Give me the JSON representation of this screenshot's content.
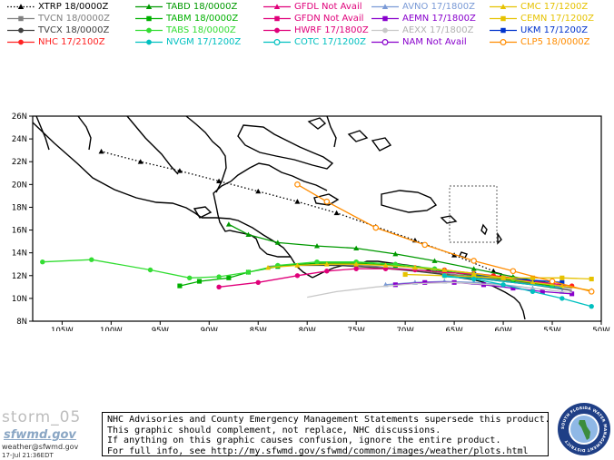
{
  "legend": [
    {
      "label": "XTRP 18/0000Z",
      "color": "#000000",
      "marker": "triangle",
      "dash": "dot"
    },
    {
      "label": "TABD 18/0000Z",
      "color": "#009900",
      "marker": "triangle",
      "dash": "solid"
    },
    {
      "label": "GFDL Not Avail",
      "color": "#e0007a",
      "marker": "triangle",
      "dash": "solid"
    },
    {
      "label": "AVNO 17/1800Z",
      "color": "#7a9ad6",
      "marker": "triangle",
      "dash": "solid"
    },
    {
      "label": "CMC 17/1200Z",
      "color": "#e6c200",
      "marker": "triangle",
      "dash": "solid"
    },
    {
      "label": "TVCN 18/0000Z",
      "color": "#808080",
      "marker": "square",
      "dash": "solid"
    },
    {
      "label": "TABM 18/0000Z",
      "color": "#00b000",
      "marker": "square",
      "dash": "solid"
    },
    {
      "label": "GFDN Not Avail",
      "color": "#e0007a",
      "marker": "square",
      "dash": "solid"
    },
    {
      "label": "AEMN 17/1800Z",
      "color": "#8800cc",
      "marker": "square",
      "dash": "solid"
    },
    {
      "label": "CEMN 17/1200Z",
      "color": "#e6c200",
      "marker": "square",
      "dash": "solid"
    },
    {
      "label": "TVCX 18/0000Z",
      "color": "#404040",
      "marker": "circle",
      "dash": "solid"
    },
    {
      "label": "TABS 18/0000Z",
      "color": "#33dd33",
      "marker": "circle",
      "dash": "solid"
    },
    {
      "label": "HWRF 17/1800Z",
      "color": "#e0007a",
      "marker": "circle",
      "dash": "solid"
    },
    {
      "label": "AEXX 17/1800Z",
      "color": "#c8c8c8",
      "marker": "circle",
      "dash": "solid"
    },
    {
      "label": "UKM 17/1200Z",
      "color": "#0033cc",
      "marker": "square",
      "dash": "solid"
    },
    {
      "label": "NHC 17/2100Z",
      "color": "#ff2222",
      "marker": "circle",
      "dash": "solid"
    },
    {
      "label": "NVGM 17/1200Z",
      "color": "#00c0c0",
      "marker": "circle",
      "dash": "solid"
    },
    {
      "label": "COTC 17/1200Z",
      "color": "#00c0c0",
      "marker": "ring",
      "dash": "solid"
    },
    {
      "label": "NAM Not Avail",
      "color": "#8800cc",
      "marker": "ring",
      "dash": "solid"
    },
    {
      "label": "CLP5 18/0000Z",
      "color": "#ff8c00",
      "marker": "ring",
      "dash": "solid"
    }
  ],
  "chart_data": {
    "type": "line",
    "xlabel": "",
    "ylabel": "",
    "xlim": [
      -108,
      -50
    ],
    "ylim": [
      8,
      26
    ],
    "x_ticks": [
      -105,
      -100,
      -95,
      -90,
      -85,
      -80,
      -75,
      -70,
      -65,
      -60,
      -55,
      -50
    ],
    "x_tick_labels": [
      "105W",
      "100W",
      "95W",
      "90W",
      "85W",
      "80W",
      "75W",
      "70W",
      "65W",
      "60W",
      "55W",
      "50W"
    ],
    "y_ticks": [
      8,
      10,
      12,
      14,
      16,
      18,
      20,
      22,
      24,
      26
    ],
    "y_tick_labels": [
      "8N",
      "10N",
      "12N",
      "14N",
      "16N",
      "18N",
      "20N",
      "22N",
      "24N",
      "26N"
    ],
    "grid": false,
    "series": [
      {
        "name": "XTRP 18/0000Z",
        "color": "#000000",
        "dash": "dot",
        "marker": "triangle",
        "x": [
          -61,
          -65,
          -69,
          -73,
          -77,
          -81,
          -85,
          -89,
          -93,
          -97,
          -101
        ],
        "y": [
          12.4,
          13.8,
          15.1,
          16.3,
          17.5,
          18.5,
          19.4,
          20.3,
          21.2,
          22,
          22.9
        ]
      },
      {
        "name": "TVCN 18/0000Z",
        "color": "#808080",
        "dash": "solid",
        "marker": "none",
        "x": [
          -53,
          -57,
          -61,
          -65,
          -69,
          -73,
          -77,
          -81,
          -84
        ],
        "y": [
          10.9,
          11.3,
          11.7,
          12.1,
          12.5,
          12.8,
          13,
          13,
          12.8
        ]
      },
      {
        "name": "TVCX 18/0000Z",
        "color": "#404040",
        "dash": "solid",
        "marker": "none",
        "x": [
          -53,
          -57,
          -61,
          -65,
          -69,
          -73,
          -77,
          -81
        ],
        "y": [
          10.7,
          11.2,
          11.6,
          12,
          12.4,
          12.7,
          12.9,
          12.9
        ]
      },
      {
        "name": "NHC 17/2100Z",
        "color": "#ff2222",
        "dash": "solid",
        "marker": "circle",
        "x": [
          -53,
          -55,
          -57,
          -59,
          -61,
          -63,
          -66,
          -69
        ],
        "y": [
          11.1,
          11.3,
          11.5,
          11.8,
          12,
          12.2,
          12.5,
          12.7
        ]
      },
      {
        "name": "TABD 18/0000Z",
        "color": "#009900",
        "dash": "solid",
        "marker": "triangle",
        "x": [
          -55,
          -59,
          -63,
          -67,
          -71,
          -75,
          -79,
          -83,
          -86,
          -88
        ],
        "y": [
          11.3,
          11.9,
          12.6,
          13.3,
          13.9,
          14.4,
          14.6,
          14.9,
          15.6,
          16.5
        ]
      },
      {
        "name": "TABM 18/0000Z",
        "color": "#00b000",
        "dash": "solid",
        "marker": "square",
        "x": [
          -55,
          -59,
          -63,
          -67,
          -71,
          -75,
          -79,
          -83,
          -86,
          -88,
          -91,
          -93
        ],
        "y": [
          11.1,
          11.6,
          12,
          12.5,
          12.9,
          13.1,
          13.1,
          12.8,
          12.3,
          11.8,
          11.5,
          11.1
        ]
      },
      {
        "name": "TABS 18/0000Z",
        "color": "#33dd33",
        "dash": "solid",
        "marker": "circle",
        "x": [
          -55,
          -59,
          -63,
          -67,
          -71,
          -75,
          -79,
          -83,
          -86,
          -89,
          -92,
          -96,
          -102,
          -107
        ],
        "y": [
          11.2,
          11.7,
          12.1,
          12.6,
          13,
          13.2,
          13.2,
          12.9,
          12.3,
          11.9,
          11.8,
          12.5,
          13.4,
          13.2
        ]
      },
      {
        "name": "HWRF 17/1800Z",
        "color": "#e0007a",
        "dash": "solid",
        "marker": "circle",
        "x": [
          -54,
          -57,
          -60,
          -63,
          -66,
          -69,
          -72,
          -75,
          -78,
          -81,
          -85,
          -89
        ],
        "y": [
          11.2,
          11.5,
          11.8,
          12.1,
          12.3,
          12.5,
          12.6,
          12.6,
          12.4,
          12,
          11.4,
          11
        ]
      },
      {
        "name": "AVNO 17/1800Z",
        "color": "#7a9ad6",
        "dash": "solid",
        "marker": "triangle",
        "x": [
          -54,
          -57,
          -60,
          -63,
          -66,
          -69,
          -72
        ],
        "y": [
          10.6,
          10.9,
          11.2,
          11.4,
          11.5,
          11.4,
          11.2
        ]
      },
      {
        "name": "AEMN 17/1800Z",
        "color": "#8800cc",
        "dash": "solid",
        "marker": "square",
        "x": [
          -53,
          -56,
          -59,
          -62,
          -65,
          -68,
          -71
        ],
        "y": [
          10.4,
          10.6,
          10.9,
          11.2,
          11.4,
          11.4,
          11.2
        ]
      },
      {
        "name": "AEXX 17/1800Z",
        "color": "#c8c8c8",
        "dash": "solid",
        "marker": "none",
        "x": [
          -53,
          -57,
          -61,
          -65,
          -69,
          -73,
          -77,
          -80
        ],
        "y": [
          10.5,
          10.9,
          11.2,
          11.4,
          11.3,
          11,
          10.6,
          10.1
        ]
      },
      {
        "name": "UKM 17/1200Z",
        "color": "#0033cc",
        "dash": "solid",
        "marker": "square",
        "x": [
          -54,
          -57,
          -60,
          -63
        ],
        "y": [
          11.4,
          11.6,
          11.8,
          12.1
        ]
      },
      {
        "name": "CMC 17/1200Z",
        "color": "#e6c200",
        "dash": "solid",
        "marker": "triangle",
        "x": [
          -51,
          -54,
          -57,
          -60,
          -63,
          -66,
          -69,
          -72,
          -75,
          -78,
          -81,
          -84
        ],
        "y": [
          10.7,
          11.1,
          11.4,
          11.8,
          12.2,
          12.5,
          12.7,
          12.9,
          13,
          13,
          12.9,
          12.7
        ]
      },
      {
        "name": "CEMN 17/1200Z",
        "color": "#e6c200",
        "dash": "solid",
        "marker": "square",
        "x": [
          -51,
          -54,
          -57,
          -60,
          -63,
          -66,
          -70
        ],
        "y": [
          11.7,
          11.8,
          11.8,
          11.8,
          11.9,
          12,
          12.1
        ]
      },
      {
        "name": "NVGM 17/1200Z",
        "color": "#00c0c0",
        "dash": "solid",
        "marker": "circle",
        "x": [
          -51,
          -54,
          -57,
          -60,
          -63,
          -66
        ],
        "y": [
          9.3,
          10,
          10.6,
          11.2,
          11.7,
          12
        ]
      },
      {
        "name": "COTC 17/1200Z",
        "color": "#00c0c0",
        "dash": "solid",
        "marker": "none",
        "x": [
          -54,
          -58,
          -62,
          -66
        ],
        "y": [
          10.9,
          11.3,
          11.7,
          11.9
        ]
      },
      {
        "name": "CLP5 18/0000Z",
        "color": "#ff8c00",
        "dash": "solid",
        "marker": "ring",
        "x": [
          -51,
          -55,
          -59,
          -63,
          -68,
          -73,
          -78,
          -81
        ],
        "y": [
          10.6,
          11.5,
          12.4,
          13.3,
          14.7,
          16.2,
          18.5,
          20
        ]
      }
    ]
  },
  "footer": {
    "storm_id": "storm_05",
    "logo_text": "sfwmd.gov",
    "contact": "weather@sfwmd.gov",
    "issued": "17-Jul 21:36EDT"
  },
  "disclaimer": [
    "NHC Advisories and County Emergency Management Statements supersede this product.",
    "This graphic should complement, not replace, NHC discussions.",
    "If anything on this graphic causes confusion, ignore the entire product.",
    "For full info, see  http://my.sfwmd.gov/sfwmd/common/images/weather/plots.html"
  ],
  "seal_text": "SOUTH FLORIDA WATER MANAGEMENT DISTRICT"
}
